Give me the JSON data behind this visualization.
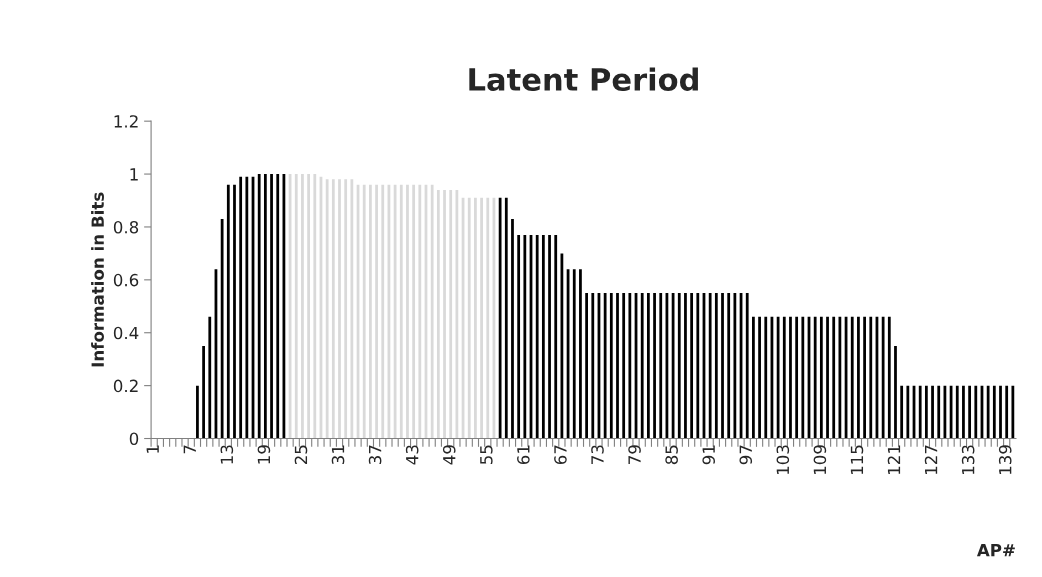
{
  "chart_data": {
    "type": "bar",
    "title": "Latent Period",
    "xlabel": "AP#",
    "ylabel": "Information in Bits",
    "categories": [
      "1",
      null,
      null,
      null,
      null,
      null,
      "7",
      null,
      null,
      null,
      null,
      null,
      "13",
      null,
      null,
      null,
      null,
      null,
      "19",
      null,
      null,
      null,
      null,
      null,
      "25",
      null,
      null,
      null,
      null,
      null,
      "31",
      null,
      null,
      null,
      null,
      null,
      "37",
      null,
      null,
      null,
      null,
      null,
      "43",
      null,
      null,
      null,
      null,
      null,
      "49",
      null,
      null,
      null,
      null,
      null,
      "55",
      null,
      null,
      null,
      null,
      null,
      "61",
      null,
      null,
      null,
      null,
      null,
      "67",
      null,
      null,
      null,
      null,
      null,
      "73",
      null,
      null,
      null,
      null,
      null,
      "79",
      null,
      null,
      null,
      null,
      null,
      "85",
      null,
      null,
      null,
      null,
      null,
      "91",
      null,
      null,
      null,
      null,
      null,
      "97",
      null,
      null,
      null,
      null,
      null,
      "103",
      null,
      null,
      null,
      null,
      null,
      "109",
      null,
      null,
      null,
      null,
      null,
      "115",
      null,
      null,
      null,
      null,
      null,
      "121",
      null,
      null,
      null,
      null,
      null,
      "127",
      null,
      null,
      null,
      null,
      null,
      "133",
      null,
      null,
      null,
      null,
      null,
      "139",
      null
    ],
    "values": [
      0,
      0,
      0,
      0,
      0,
      0,
      0,
      0.2,
      0.35,
      0.46,
      0.64,
      0.83,
      0.96,
      0.96,
      0.99,
      0.99,
      0.99,
      1,
      1,
      1,
      1,
      1,
      1,
      1,
      1,
      1,
      1,
      0.99,
      0.98,
      0.98,
      0.98,
      0.98,
      0.98,
      0.96,
      0.96,
      0.96,
      0.96,
      0.96,
      0.96,
      0.96,
      0.96,
      0.96,
      0.96,
      0.96,
      0.96,
      0.96,
      0.94,
      0.94,
      0.94,
      0.94,
      0.91,
      0.91,
      0.91,
      0.91,
      0.91,
      0.91,
      0.91,
      0.91,
      0.83,
      0.77,
      0.77,
      0.77,
      0.77,
      0.77,
      0.77,
      0.77,
      0.7,
      0.64,
      0.64,
      0.64,
      0.55,
      0.55,
      0.55,
      0.55,
      0.55,
      0.55,
      0.55,
      0.55,
      0.55,
      0.55,
      0.55,
      0.55,
      0.55,
      0.55,
      0.55,
      0.55,
      0.55,
      0.55,
      0.55,
      0.55,
      0.55,
      0.55,
      0.55,
      0.55,
      0.55,
      0.55,
      0.55,
      0.46,
      0.46,
      0.46,
      0.46,
      0.46,
      0.46,
      0.46,
      0.46,
      0.46,
      0.46,
      0.46,
      0.46,
      0.46,
      0.46,
      0.46,
      0.46,
      0.46,
      0.46,
      0.46,
      0.46,
      0.46,
      0.46,
      0.46,
      0.35,
      0.2,
      0.2,
      0.2,
      0.2,
      0.2,
      0.2,
      0.2,
      0.2,
      0.2,
      0.2,
      0.2,
      0.2,
      0.2,
      0.2,
      0.2,
      0.2,
      0.2,
      0.2,
      0.2
    ],
    "colors": [
      "#000000",
      "#000000",
      "#000000",
      "#000000",
      "#000000",
      "#000000",
      "#000000",
      "#000000",
      "#000000",
      "#000000",
      "#000000",
      "#000000",
      "#000000",
      "#000000",
      "#000000",
      "#000000",
      "#000000",
      "#000000",
      "#000000",
      "#000000",
      "#000000",
      "#000000",
      "#d9d9d9",
      "#d9d9d9",
      "#d9d9d9",
      "#d9d9d9",
      "#d9d9d9",
      "#d9d9d9",
      "#d9d9d9",
      "#d9d9d9",
      "#d9d9d9",
      "#d9d9d9",
      "#d9d9d9",
      "#d9d9d9",
      "#d9d9d9",
      "#d9d9d9",
      "#d9d9d9",
      "#d9d9d9",
      "#d9d9d9",
      "#d9d9d9",
      "#d9d9d9",
      "#d9d9d9",
      "#d9d9d9",
      "#d9d9d9",
      "#d9d9d9",
      "#d9d9d9",
      "#d9d9d9",
      "#d9d9d9",
      "#d9d9d9",
      "#d9d9d9",
      "#d9d9d9",
      "#d9d9d9",
      "#d9d9d9",
      "#d9d9d9",
      "#d9d9d9",
      "#d9d9d9",
      "#000000",
      "#000000",
      "#000000",
      "#000000",
      "#000000",
      "#000000",
      "#000000",
      "#000000",
      "#000000",
      "#000000",
      "#000000",
      "#000000",
      "#000000",
      "#000000",
      "#000000",
      "#000000",
      "#000000",
      "#000000",
      "#000000",
      "#000000",
      "#000000",
      "#000000",
      "#000000",
      "#000000",
      "#000000",
      "#000000",
      "#000000",
      "#000000",
      "#000000",
      "#000000",
      "#000000",
      "#000000",
      "#000000",
      "#000000",
      "#000000",
      "#000000",
      "#000000",
      "#000000",
      "#000000",
      "#000000",
      "#000000",
      "#000000",
      "#000000",
      "#000000",
      "#000000",
      "#000000",
      "#000000",
      "#000000",
      "#000000",
      "#000000",
      "#000000",
      "#000000",
      "#000000",
      "#000000",
      "#000000",
      "#000000",
      "#000000",
      "#000000",
      "#000000",
      "#000000",
      "#000000",
      "#000000",
      "#000000",
      "#000000",
      "#000000",
      "#000000",
      "#000000",
      "#000000",
      "#000000",
      "#000000",
      "#000000",
      "#000000",
      "#000000",
      "#000000",
      "#000000",
      "#000000",
      "#000000",
      "#000000",
      "#000000",
      "#000000",
      "#000000",
      "#000000",
      "#000000",
      "#000000"
    ],
    "ylim": [
      0,
      1.2
    ],
    "yticks": [
      0,
      0.2,
      0.4,
      0.6,
      0.8,
      1,
      1.2
    ],
    "grid": false,
    "legend": false
  }
}
